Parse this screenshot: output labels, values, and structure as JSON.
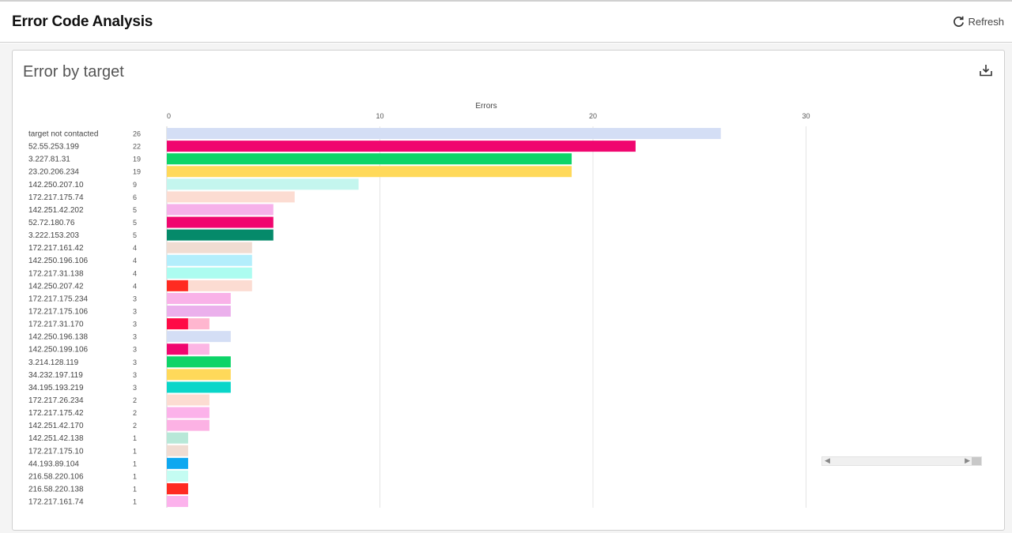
{
  "header": {
    "title": "Error Code Analysis",
    "refresh_label": "Refresh"
  },
  "card": {
    "title": "Error by target"
  },
  "chart_data": {
    "type": "bar",
    "orientation": "horizontal",
    "xlabel": "Errors",
    "xlim": [
      0,
      30
    ],
    "xticks": [
      "0",
      "10",
      "20",
      "30"
    ],
    "grid": true,
    "categories": [
      "target not contacted",
      "52.55.253.199",
      "3.227.81.31",
      "23.20.206.234",
      "142.250.207.10",
      "172.217.175.74",
      "142.251.42.202",
      "52.72.180.76",
      "3.222.153.203",
      "172.217.161.42",
      "142.250.196.106",
      "172.217.31.138",
      "142.250.207.42",
      "172.217.175.234",
      "172.217.175.106",
      "172.217.31.170",
      "142.250.196.138",
      "142.250.199.106",
      "3.214.128.119",
      "34.232.197.119",
      "34.195.193.219",
      "172.217.26.234",
      "172.217.175.42",
      "142.251.42.170",
      "142.251.42.138",
      "172.217.175.10",
      "44.193.89.104",
      "216.58.220.106",
      "216.58.220.138",
      "172.217.161.74"
    ],
    "values": [
      26,
      22,
      19,
      19,
      9,
      6,
      5,
      5,
      5,
      4,
      4,
      4,
      4,
      3,
      3,
      3,
      3,
      3,
      3,
      3,
      3,
      2,
      2,
      2,
      1,
      1,
      1,
      1,
      1,
      1
    ],
    "segments": [
      [
        {
          "v": 26,
          "c": "#d4def5"
        }
      ],
      [
        {
          "v": 22,
          "c": "#f0066f"
        }
      ],
      [
        {
          "v": 19,
          "c": "#0dd468"
        }
      ],
      [
        {
          "v": 19,
          "c": "#ffd95a"
        }
      ],
      [
        {
          "v": 9,
          "c": "#c4f6ee"
        }
      ],
      [
        {
          "v": 6,
          "c": "#fcdcd2"
        }
      ],
      [
        {
          "v": 5,
          "c": "#f6b1ea"
        }
      ],
      [
        {
          "v": 5,
          "c": "#f0066f"
        }
      ],
      [
        {
          "v": 5,
          "c": "#058a6a"
        }
      ],
      [
        {
          "v": 4,
          "c": "#f0dcd2"
        }
      ],
      [
        {
          "v": 4,
          "c": "#b3eefc"
        }
      ],
      [
        {
          "v": 4,
          "c": "#acfcf0"
        }
      ],
      [
        {
          "v": 1,
          "c": "#ff2b21"
        },
        {
          "v": 3,
          "c": "#fcdcd2"
        }
      ],
      [
        {
          "v": 3,
          "c": "#f9b2e8"
        }
      ],
      [
        {
          "v": 3,
          "c": "#ebb0ec"
        }
      ],
      [
        {
          "v": 1,
          "c": "#ff0a46"
        },
        {
          "v": 1,
          "c": "#ffb6cf"
        }
      ],
      [
        {
          "v": 3,
          "c": "#d4def5"
        }
      ],
      [
        {
          "v": 1,
          "c": "#f0066f"
        },
        {
          "v": 1,
          "c": "#fcb6e4"
        }
      ],
      [
        {
          "v": 3,
          "c": "#0dd468"
        }
      ],
      [
        {
          "v": 3,
          "c": "#ffd95a"
        }
      ],
      [
        {
          "v": 3,
          "c": "#0ad6c9"
        }
      ],
      [
        {
          "v": 2,
          "c": "#fcdcd2"
        }
      ],
      [
        {
          "v": 2,
          "c": "#fcb2ea"
        }
      ],
      [
        {
          "v": 2,
          "c": "#fcb2e4"
        }
      ],
      [
        {
          "v": 1,
          "c": "#b8e8d8"
        }
      ],
      [
        {
          "v": 1,
          "c": "#f0dcd2"
        }
      ],
      [
        {
          "v": 1,
          "c": "#0ea8f0"
        }
      ],
      [
        {
          "v": 1,
          "c": "#c4fcf2"
        }
      ],
      [
        {
          "v": 1,
          "c": "#ff2b21"
        }
      ],
      [
        {
          "v": 1,
          "c": "#fcb2ec"
        }
      ]
    ]
  }
}
